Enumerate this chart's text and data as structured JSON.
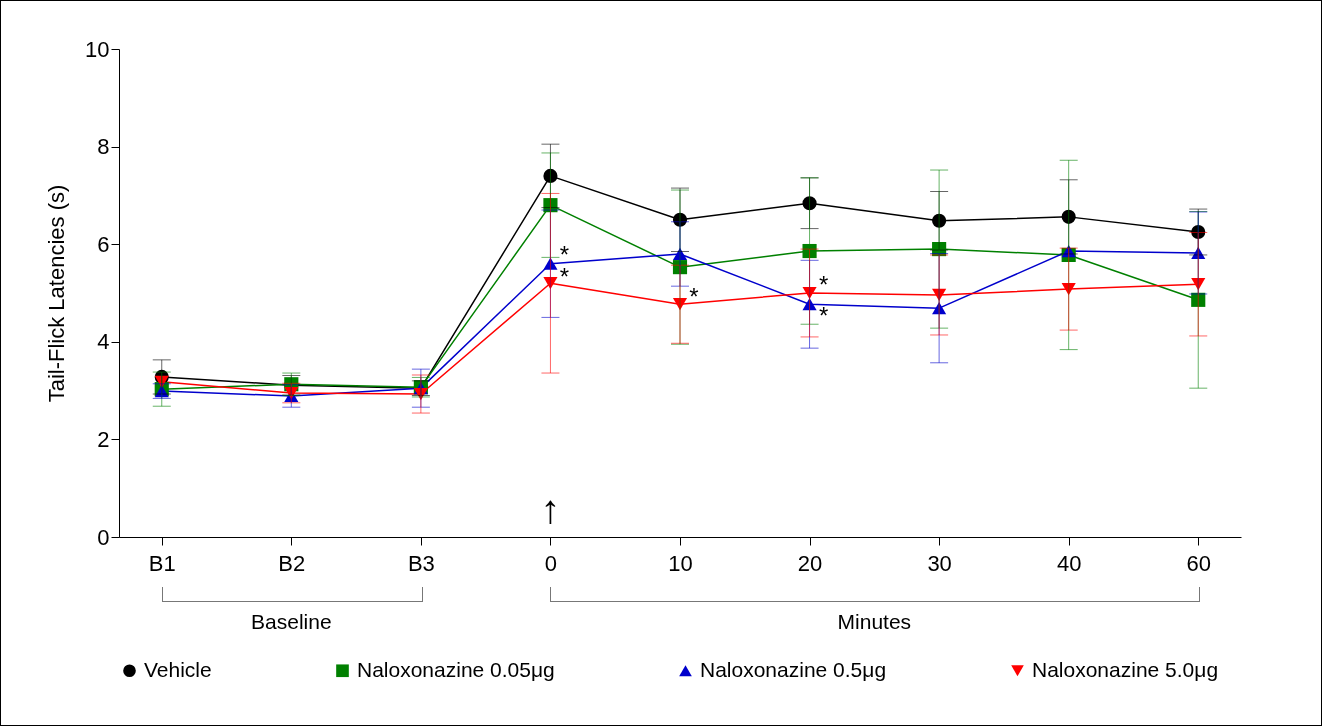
{
  "chart_data": {
    "type": "line",
    "ylabel": "Tail-Flick Latencies (s)",
    "categories": [
      "B1",
      "B2",
      "B3",
      "0",
      "10",
      "20",
      "30",
      "40",
      "60"
    ],
    "ylim": [
      0,
      10
    ],
    "yticks": [
      0,
      2,
      4,
      6,
      8,
      10
    ],
    "grid": false,
    "legend": "bottom",
    "series": [
      {
        "name": "Vehicle",
        "color": "#000000",
        "marker": "circle",
        "values": [
          3.28,
          3.11,
          3.05,
          7.4,
          6.5,
          6.84,
          6.48,
          6.56,
          6.25
        ],
        "errors": [
          0.35,
          0.2,
          0.15,
          0.65,
          0.65,
          0.52,
          0.6,
          0.76,
          0.47
        ]
      },
      {
        "name": "Naloxonazine 0.05μg",
        "color": "#008000",
        "marker": "square",
        "values": [
          3.03,
          3.13,
          3.07,
          6.8,
          5.53,
          5.86,
          5.9,
          5.78,
          4.86
        ],
        "errors": [
          0.35,
          0.23,
          0.2,
          1.07,
          1.58,
          1.5,
          1.62,
          1.94,
          1.81
        ]
      },
      {
        "name": "Naloxonazine 0.5μg",
        "color": "#0000cc",
        "marker": "triangle",
        "values": [
          2.99,
          2.89,
          3.05,
          5.6,
          5.8,
          4.77,
          4.69,
          5.86,
          5.82
        ],
        "errors": [
          0.15,
          0.23,
          0.39,
          1.1,
          0.66,
          0.9,
          1.12,
          null,
          0.84
        ]
      },
      {
        "name": "Naloxonazine 5.0μg",
        "color": "#ff0000",
        "marker": "triangle-down",
        "values": [
          3.18,
          2.95,
          2.93,
          5.2,
          4.77,
          5.0,
          4.96,
          5.08,
          5.18
        ],
        "errors": [
          null,
          0.2,
          0.39,
          1.84,
          0.8,
          0.9,
          0.82,
          0.84,
          1.06
        ]
      }
    ],
    "annotations": [
      {
        "text": "*",
        "x": "0",
        "y": 5.75
      },
      {
        "text": "*",
        "x": "0",
        "y": 5.3
      },
      {
        "text": "*",
        "x": "10",
        "y": 4.9
      },
      {
        "text": "*",
        "x": "20",
        "y": 5.15
      },
      {
        "text": "*",
        "x": "20",
        "y": 4.5
      },
      "↑",
      "Baseline",
      "Minutes"
    ]
  }
}
